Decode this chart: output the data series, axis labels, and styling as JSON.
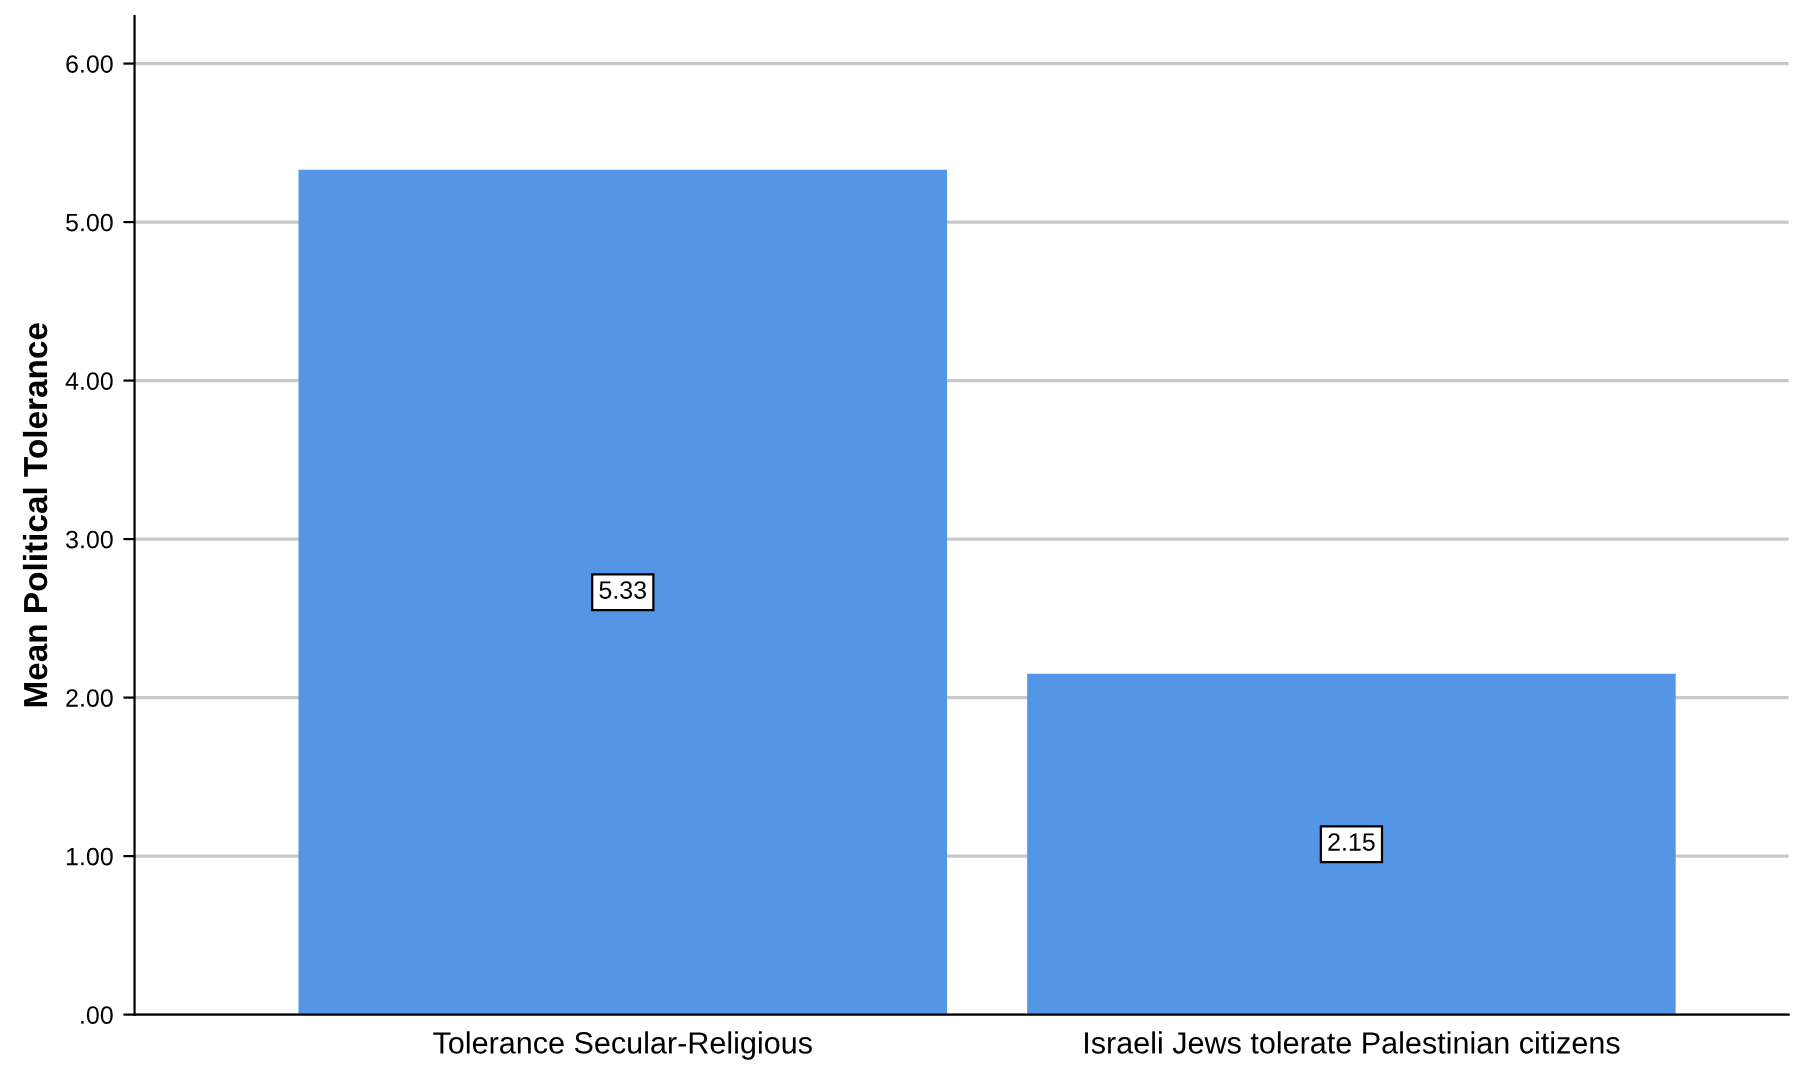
{
  "chart_data": {
    "type": "bar",
    "ylabel": "Mean Political Tolerance",
    "categories": [
      "Tolerance Secular-Religious",
      "Israeli Jews tolerate Palestinian citizens"
    ],
    "values": [
      5.33,
      2.15
    ],
    "color": "#5595e6",
    "ylim": [
      0,
      6.3
    ],
    "yticks": [
      {
        "value": 0,
        "label": ".00"
      },
      {
        "value": 1,
        "label": "1.00"
      },
      {
        "value": 2,
        "label": "2.00"
      },
      {
        "value": 3,
        "label": "3.00"
      },
      {
        "value": 4,
        "label": "4.00"
      },
      {
        "value": 5,
        "label": "5.00"
      },
      {
        "value": 6,
        "label": "6.00"
      }
    ],
    "grid": "y",
    "data_labels": true
  }
}
